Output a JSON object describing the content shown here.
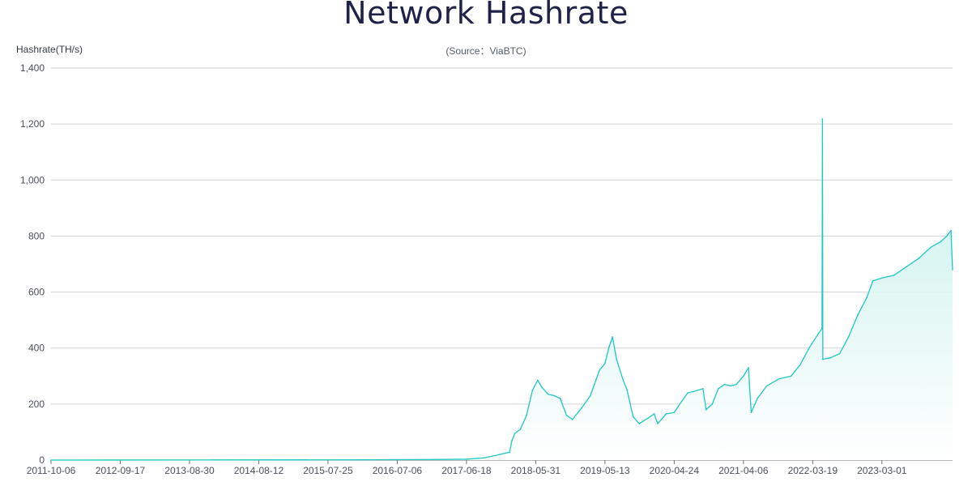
{
  "chart_data": {
    "type": "area",
    "title": "Network Hashrate",
    "subtitle": "(Source：ViaBTC)",
    "ylabel": "Hashrate(TH/s)",
    "xlabel": "",
    "ylim": [
      0,
      1400
    ],
    "xlim": [
      "2011-10-06",
      "2024-02-18"
    ],
    "grid": true,
    "y_ticks": [
      "0",
      "200",
      "400",
      "600",
      "800",
      "1,000",
      "1,200",
      "1,400"
    ],
    "y_tick_values": [
      0,
      200,
      400,
      600,
      800,
      1000,
      1200,
      1400
    ],
    "x_ticks": [
      "2011-10-06",
      "2012-09-17",
      "2013-08-30",
      "2014-08-12",
      "2015-07-25",
      "2016-07-06",
      "2017-06-18",
      "2018-05-31",
      "2019-05-13",
      "2020-04-24",
      "2021-04-06",
      "2022-03-19",
      "2023-03-01"
    ],
    "colors": {
      "line": "#1ec8c4",
      "area_top": "#bdeee8",
      "area_bottom": "#ffffff",
      "grid": "#cfd2d6",
      "axis": "#6e7079"
    },
    "series": [
      {
        "points": [
          [
            "2011-10-06",
            0
          ],
          [
            "2014-01-01",
            0.5
          ],
          [
            "2016-01-01",
            1
          ],
          [
            "2017-01-01",
            2
          ],
          [
            "2017-06-18",
            3
          ],
          [
            "2017-09-15",
            8
          ],
          [
            "2017-12-01",
            20
          ],
          [
            "2018-01-20",
            28
          ],
          [
            "2018-02-01",
            70
          ],
          [
            "2018-02-15",
            95
          ],
          [
            "2018-03-15",
            110
          ],
          [
            "2018-04-15",
            160
          ],
          [
            "2018-05-15",
            250
          ],
          [
            "2018-06-10",
            285
          ],
          [
            "2018-07-01",
            260
          ],
          [
            "2018-08-01",
            235
          ],
          [
            "2018-09-01",
            230
          ],
          [
            "2018-10-01",
            220
          ],
          [
            "2018-11-01",
            160
          ],
          [
            "2018-12-01",
            145
          ],
          [
            "2019-01-15",
            185
          ],
          [
            "2019-03-01",
            230
          ],
          [
            "2019-04-15",
            320
          ],
          [
            "2019-05-13",
            345
          ],
          [
            "2019-06-01",
            400
          ],
          [
            "2019-06-20",
            440
          ],
          [
            "2019-07-10",
            360
          ],
          [
            "2019-08-10",
            290
          ],
          [
            "2019-09-01",
            250
          ],
          [
            "2019-10-01",
            155
          ],
          [
            "2019-11-01",
            130
          ],
          [
            "2019-12-15",
            150
          ],
          [
            "2020-01-15",
            165
          ],
          [
            "2020-02-01",
            130
          ],
          [
            "2020-03-15",
            165
          ],
          [
            "2020-04-24",
            170
          ],
          [
            "2020-06-01",
            210
          ],
          [
            "2020-07-01",
            240
          ],
          [
            "2020-08-01",
            245
          ],
          [
            "2020-09-15",
            255
          ],
          [
            "2020-10-01",
            180
          ],
          [
            "2020-11-01",
            200
          ],
          [
            "2020-12-01",
            255
          ],
          [
            "2021-01-01",
            270
          ],
          [
            "2021-02-01",
            265
          ],
          [
            "2021-03-01",
            270
          ],
          [
            "2021-04-06",
            300
          ],
          [
            "2021-05-01",
            330
          ],
          [
            "2021-05-15",
            170
          ],
          [
            "2021-06-15",
            220
          ],
          [
            "2021-08-01",
            265
          ],
          [
            "2021-10-01",
            290
          ],
          [
            "2021-12-01",
            300
          ],
          [
            "2022-01-15",
            340
          ],
          [
            "2022-03-01",
            400
          ],
          [
            "2022-04-15",
            450
          ],
          [
            "2022-05-05",
            470
          ],
          [
            "2022-05-07",
            1218
          ],
          [
            "2022-05-09",
            360
          ],
          [
            "2022-06-15",
            365
          ],
          [
            "2022-08-01",
            380
          ],
          [
            "2022-09-15",
            440
          ],
          [
            "2022-11-01",
            520
          ],
          [
            "2022-12-15",
            580
          ],
          [
            "2023-01-15",
            640
          ],
          [
            "2023-03-01",
            650
          ],
          [
            "2023-05-01",
            660
          ],
          [
            "2023-07-01",
            690
          ],
          [
            "2023-09-01",
            720
          ],
          [
            "2023-11-01",
            760
          ],
          [
            "2023-12-20",
            780
          ],
          [
            "2024-01-20",
            800
          ],
          [
            "2024-02-10",
            820
          ],
          [
            "2024-02-18",
            680
          ]
        ]
      }
    ]
  }
}
